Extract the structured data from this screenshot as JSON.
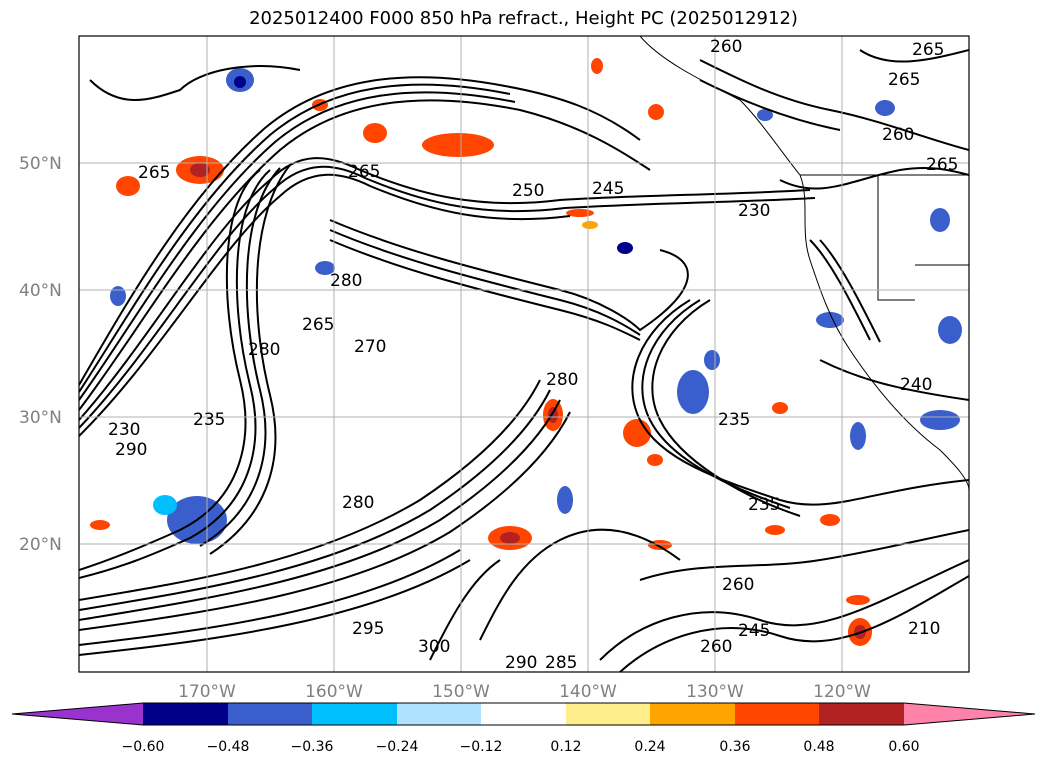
{
  "title": "2025012400 F000 850 hPa refract., Height PC (2025012912)",
  "map": {
    "lat_labels": [
      "50°N",
      "40°N",
      "30°N",
      "20°N"
    ],
    "lon_labels": [
      "170°W",
      "160°W",
      "150°W",
      "140°W",
      "130°W",
      "120°W"
    ],
    "contour_labels": [
      "260",
      "265",
      "265",
      "260",
      "265",
      "265",
      "265",
      "250",
      "245",
      "230",
      "280",
      "265",
      "280",
      "270",
      "235",
      "280",
      "230",
      "290",
      "235",
      "280",
      "235",
      "260",
      "245",
      "300",
      "295",
      "290",
      "285",
      "260",
      "240",
      "210"
    ],
    "colors": {
      "coastline": "#000000",
      "contour": "#000000",
      "grid": "#b0b0b0"
    }
  },
  "colorbar": {
    "ticks": [
      "−0.60",
      "−0.48",
      "−0.36",
      "−0.24",
      "−0.12",
      "0.12",
      "0.24",
      "0.36",
      "0.48",
      "0.60"
    ],
    "colors": [
      "#9a32cd",
      "#00008b",
      "#3a5fcd",
      "#00bfff",
      "#b0e2ff",
      "#ffffff",
      "#ffec8b",
      "#ffa500",
      "#ff4500",
      "#b22222",
      "#ff82ab"
    ]
  }
}
